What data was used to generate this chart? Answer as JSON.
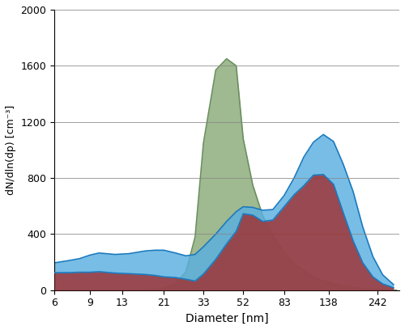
{
  "title": "",
  "xlabel": "Diameter [nm]",
  "ylabel": "dN/dln(dp) [cm⁻³]",
  "xlim_log": [
    6,
    310
  ],
  "ylim": [
    0,
    2000
  ],
  "yticks": [
    0,
    400,
    800,
    1200,
    1600,
    2000
  ],
  "xtick_labels": [
    "6",
    "9",
    "13",
    "21",
    "33",
    "52",
    "83",
    "138",
    "242"
  ],
  "xtick_values": [
    6,
    9,
    13,
    21,
    33,
    52,
    83,
    138,
    242
  ],
  "colors": {
    "red": "#a03030",
    "light_blue": "#5aafe0",
    "dark_blue": "#1a7abf",
    "green": "#8aaa78"
  },
  "series": {
    "green": {
      "diameters": [
        6,
        8,
        10,
        13,
        17,
        21,
        24,
        27,
        30,
        33,
        38,
        43,
        48,
        52,
        58,
        65,
        73,
        83,
        93,
        104,
        116,
        130,
        146,
        163,
        200,
        242,
        300
      ],
      "values": [
        0,
        0,
        0,
        0,
        0,
        15,
        50,
        130,
        380,
        1050,
        1570,
        1650,
        1600,
        1080,
        750,
        530,
        390,
        270,
        190,
        140,
        95,
        65,
        45,
        30,
        12,
        5,
        0
      ]
    },
    "light_blue": {
      "diameters": [
        6,
        7,
        8,
        9,
        10,
        12,
        14,
        17,
        19,
        21,
        24,
        27,
        30,
        33,
        38,
        43,
        48,
        52,
        58,
        65,
        73,
        83,
        93,
        104,
        116,
        130,
        146,
        163,
        183,
        204,
        229,
        256,
        290
      ],
      "values": [
        195,
        210,
        225,
        250,
        265,
        255,
        260,
        280,
        285,
        285,
        265,
        245,
        255,
        310,
        400,
        490,
        560,
        595,
        590,
        570,
        575,
        675,
        800,
        950,
        1055,
        1110,
        1060,
        900,
        700,
        450,
        240,
        110,
        40
      ]
    },
    "red": {
      "diameters": [
        6,
        7,
        8,
        9,
        10,
        12,
        14,
        17,
        19,
        21,
        24,
        27,
        30,
        33,
        38,
        43,
        48,
        52,
        58,
        65,
        73,
        83,
        93,
        104,
        116,
        130,
        146,
        163,
        183,
        204,
        229,
        256,
        290
      ],
      "values": [
        125,
        125,
        128,
        128,
        132,
        122,
        118,
        112,
        105,
        95,
        90,
        78,
        65,
        115,
        220,
        330,
        420,
        545,
        535,
        490,
        500,
        595,
        680,
        745,
        820,
        825,
        755,
        555,
        350,
        195,
        95,
        45,
        18
      ]
    }
  },
  "zorder": [
    "green",
    "light_blue",
    "red"
  ],
  "fill_alpha": 0.82,
  "line_color_red": "#1a7abf",
  "line_color_light_blue": "#1a7abf",
  "line_color_green": "#6a9060"
}
